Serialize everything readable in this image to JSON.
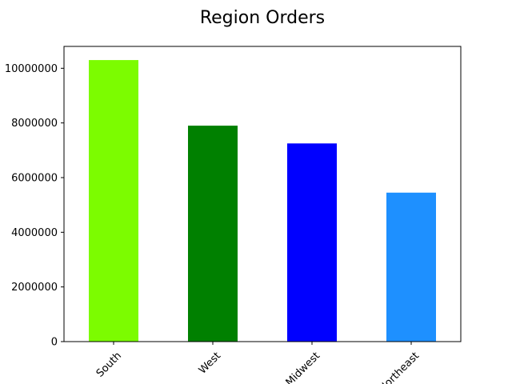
{
  "chart_data": {
    "type": "bar",
    "title": "Region Orders",
    "xlabel": "",
    "ylabel": "",
    "categories": [
      "South",
      "West",
      "Midwest",
      "Northeast"
    ],
    "values": [
      10300000,
      7900000,
      7250000,
      5450000
    ],
    "colors": [
      "#7cfc00",
      "#008000",
      "#0000ff",
      "#1e90ff"
    ],
    "ylim": [
      0,
      10800000
    ],
    "yticks": [
      0,
      2000000,
      4000000,
      6000000,
      8000000,
      10000000
    ],
    "ytick_labels": [
      "0",
      "2000000",
      "4000000",
      "6000000",
      "8000000",
      "10000000"
    ],
    "grid": false,
    "legend": "none"
  }
}
